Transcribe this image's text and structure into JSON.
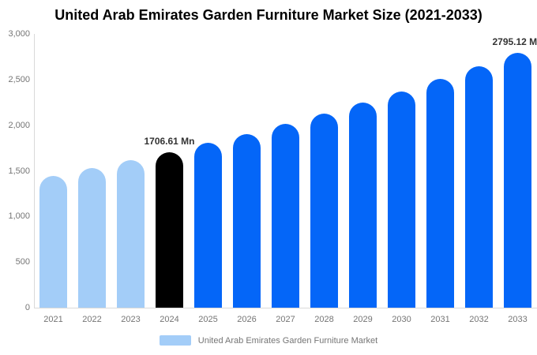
{
  "title": "United Arab Emirates Garden Furniture Market Size (2021-2033)",
  "colors": {
    "light_blue": "#A3CDF8",
    "brand_blue": "#0466F8",
    "highlight_black": "#000000",
    "axis_line": "#D9D9D9",
    "tick_text": "#757575",
    "data_label_text": "#333333",
    "title_text": "#000000",
    "background": "#FFFFFF"
  },
  "chart_data": {
    "type": "bar",
    "title": "United Arab Emirates Garden Furniture Market Size (2021-2033)",
    "categories": [
      "2021",
      "2022",
      "2023",
      "2024",
      "2025",
      "2026",
      "2027",
      "2028",
      "2029",
      "2030",
      "2031",
      "2032",
      "2033"
    ],
    "values": [
      1447.8,
      1529.4,
      1615.6,
      1706.61,
      1802.8,
      1904.4,
      2011.7,
      2125.0,
      2244.8,
      2371.3,
      2504.9,
      2646.1,
      2795.12
    ],
    "value_unit": "Mn",
    "point_colors": [
      "light_blue",
      "light_blue",
      "light_blue",
      "highlight_black",
      "brand_blue",
      "brand_blue",
      "brand_blue",
      "brand_blue",
      "brand_blue",
      "brand_blue",
      "brand_blue",
      "brand_blue",
      "brand_blue"
    ],
    "data_labels": [
      {
        "category": "2024",
        "text": "1706.61 Mn"
      },
      {
        "category": "2033",
        "text": "2795.12 Mn"
      }
    ],
    "xlabel": "",
    "ylabel": "",
    "ylim": [
      0,
      3000
    ],
    "yticks": [
      {
        "value": 3000,
        "label": "3,000"
      },
      {
        "value": 2500,
        "label": "2,500"
      },
      {
        "value": 2000,
        "label": "2,000"
      },
      {
        "value": 1500,
        "label": "1,500"
      },
      {
        "value": 1000,
        "label": "1,000"
      },
      {
        "value": 500,
        "label": "500"
      },
      {
        "value": 0,
        "label": "0"
      }
    ],
    "grid": false,
    "legend_position": "bottom-center",
    "legend": [
      {
        "label": "United Arab Emirates Garden Furniture Market",
        "swatch_color_key": "light_blue"
      }
    ]
  }
}
